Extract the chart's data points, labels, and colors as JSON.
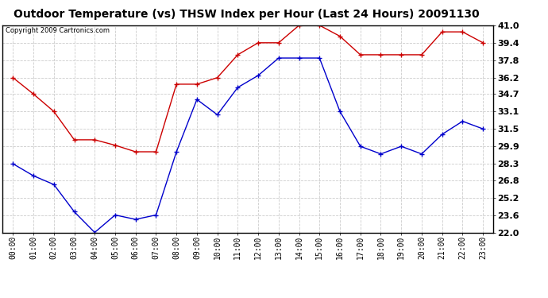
{
  "title": "Outdoor Temperature (vs) THSW Index per Hour (Last 24 Hours) 20091130",
  "copyright": "Copyright 2009 Cartronics.com",
  "hours": [
    "00:00",
    "01:00",
    "02:00",
    "03:00",
    "04:00",
    "05:00",
    "06:00",
    "07:00",
    "08:00",
    "09:00",
    "10:00",
    "11:00",
    "12:00",
    "13:00",
    "14:00",
    "15:00",
    "16:00",
    "17:00",
    "18:00",
    "19:00",
    "20:00",
    "21:00",
    "22:00",
    "23:00"
  ],
  "red_data": [
    36.2,
    34.7,
    33.1,
    30.5,
    30.5,
    30.0,
    29.4,
    29.4,
    35.6,
    35.6,
    36.2,
    38.3,
    39.4,
    39.4,
    41.0,
    41.0,
    40.0,
    38.3,
    38.3,
    38.3,
    38.3,
    40.4,
    40.4,
    39.4
  ],
  "blue_data": [
    28.3,
    27.2,
    26.4,
    23.9,
    22.0,
    23.6,
    23.2,
    23.6,
    29.4,
    34.2,
    32.8,
    35.3,
    36.4,
    38.0,
    38.0,
    38.0,
    33.1,
    29.9,
    29.2,
    29.9,
    29.2,
    31.0,
    32.2,
    31.5
  ],
  "red_color": "#cc0000",
  "blue_color": "#0000cc",
  "ylim_min": 22.0,
  "ylim_max": 41.0,
  "yticks": [
    22.0,
    23.6,
    25.2,
    26.8,
    28.3,
    29.9,
    31.5,
    33.1,
    34.7,
    36.2,
    37.8,
    39.4,
    41.0
  ],
  "background_color": "#ffffff",
  "grid_color": "#cccccc",
  "title_fontsize": 10,
  "copyright_fontsize": 6,
  "tick_fontsize": 7,
  "ytick_fontsize": 8,
  "marker": "+"
}
